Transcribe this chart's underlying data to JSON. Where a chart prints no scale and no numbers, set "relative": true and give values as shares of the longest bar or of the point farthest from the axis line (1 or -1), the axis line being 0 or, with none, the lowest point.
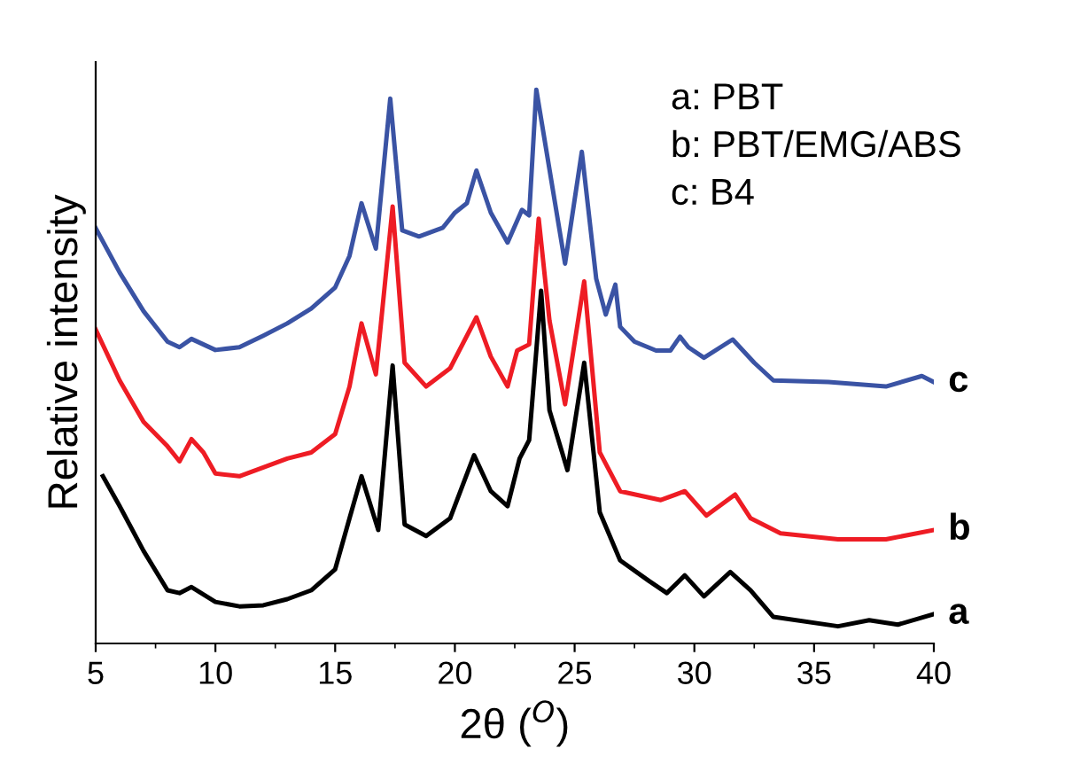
{
  "chart_data": {
    "type": "line",
    "relative": true,
    "xlabel": "2θ ($^{O}$)",
    "ylabel": "Relative intensity",
    "xlim": [
      5,
      40
    ],
    "xticks": [
      5,
      10,
      15,
      20,
      25,
      30,
      35,
      40
    ],
    "tick_labels": "x",
    "legend": false,
    "grid": false,
    "marker": "none",
    "line_style": "solid",
    "annotations": [
      "a: PBT",
      "b: PBT/EMG/ABS",
      "c: B4"
    ],
    "series": [
      {
        "name": "a",
        "color": "#000000",
        "x": [
          5.3,
          6,
          7,
          8,
          8.5,
          9,
          10,
          11,
          12,
          13,
          14,
          15,
          15.6,
          16.1,
          16.8,
          17.4,
          17.9,
          18.8,
          19.8,
          20.8,
          21.5,
          22.2,
          22.7,
          23.1,
          23.6,
          23.95,
          24.7,
          25.4,
          26.05,
          26.9,
          28.1,
          28.85,
          29.6,
          30.4,
          31.5,
          32.35,
          33.3,
          36.0,
          37.3,
          38.5,
          40
        ],
        "values": [
          0.302,
          0.248,
          0.167,
          0.096,
          0.091,
          0.102,
          0.075,
          0.067,
          0.069,
          0.08,
          0.096,
          0.134,
          0.226,
          0.302,
          0.205,
          0.502,
          0.215,
          0.194,
          0.226,
          0.34,
          0.275,
          0.248,
          0.334,
          0.367,
          0.637,
          0.421,
          0.313,
          0.507,
          0.237,
          0.15,
          0.113,
          0.091,
          0.123,
          0.085,
          0.129,
          0.096,
          0.048,
          0.031,
          0.042,
          0.034,
          0.053
        ]
      },
      {
        "name": "b",
        "color": "#ee1c24",
        "x": [
          5,
          6,
          7,
          8,
          8.5,
          9,
          9.5,
          10,
          11,
          12,
          13,
          14,
          15,
          15.6,
          16.1,
          16.7,
          17.4,
          17.9,
          18.8,
          19.8,
          20.9,
          21.5,
          22.2,
          22.6,
          23.1,
          23.5,
          23.95,
          24.6,
          25.4,
          26.05,
          26.9,
          28.6,
          29.6,
          30.5,
          31.7,
          32.35,
          33.6,
          36.0,
          38.0,
          40
        ],
        "values": [
          0.567,
          0.475,
          0.4,
          0.356,
          0.329,
          0.369,
          0.345,
          0.307,
          0.302,
          0.318,
          0.334,
          0.345,
          0.378,
          0.464,
          0.578,
          0.486,
          0.789,
          0.507,
          0.464,
          0.497,
          0.589,
          0.518,
          0.464,
          0.529,
          0.54,
          0.767,
          0.583,
          0.432,
          0.654,
          0.345,
          0.275,
          0.259,
          0.275,
          0.231,
          0.269,
          0.226,
          0.199,
          0.188,
          0.188,
          0.205
        ]
      },
      {
        "name": "c",
        "color": "#3a53a4",
        "x": [
          5,
          6,
          7,
          8,
          8.5,
          9,
          9.5,
          10,
          11,
          12,
          13,
          14,
          15,
          15.6,
          16.1,
          16.7,
          17.3,
          17.8,
          18.5,
          19.5,
          20,
          20.5,
          20.9,
          21.5,
          22.2,
          22.8,
          23.1,
          23.4,
          24.6,
          25.3,
          25.9,
          26.3,
          26.7,
          26.9,
          27.5,
          28.4,
          29.0,
          29.4,
          29.75,
          30.4,
          31.6,
          32.5,
          33.3,
          35.6,
          38.0,
          39.5,
          40
        ],
        "values": [
          0.75,
          0.67,
          0.6,
          0.545,
          0.535,
          0.55,
          0.54,
          0.53,
          0.535,
          0.556,
          0.578,
          0.605,
          0.643,
          0.7,
          0.795,
          0.713,
          0.984,
          0.746,
          0.735,
          0.751,
          0.778,
          0.795,
          0.854,
          0.778,
          0.724,
          0.783,
          0.773,
          1.0,
          0.686,
          0.888,
          0.659,
          0.594,
          0.648,
          0.572,
          0.545,
          0.529,
          0.529,
          0.554,
          0.535,
          0.516,
          0.549,
          0.507,
          0.475,
          0.472,
          0.464,
          0.483,
          0.472
        ]
      }
    ]
  }
}
